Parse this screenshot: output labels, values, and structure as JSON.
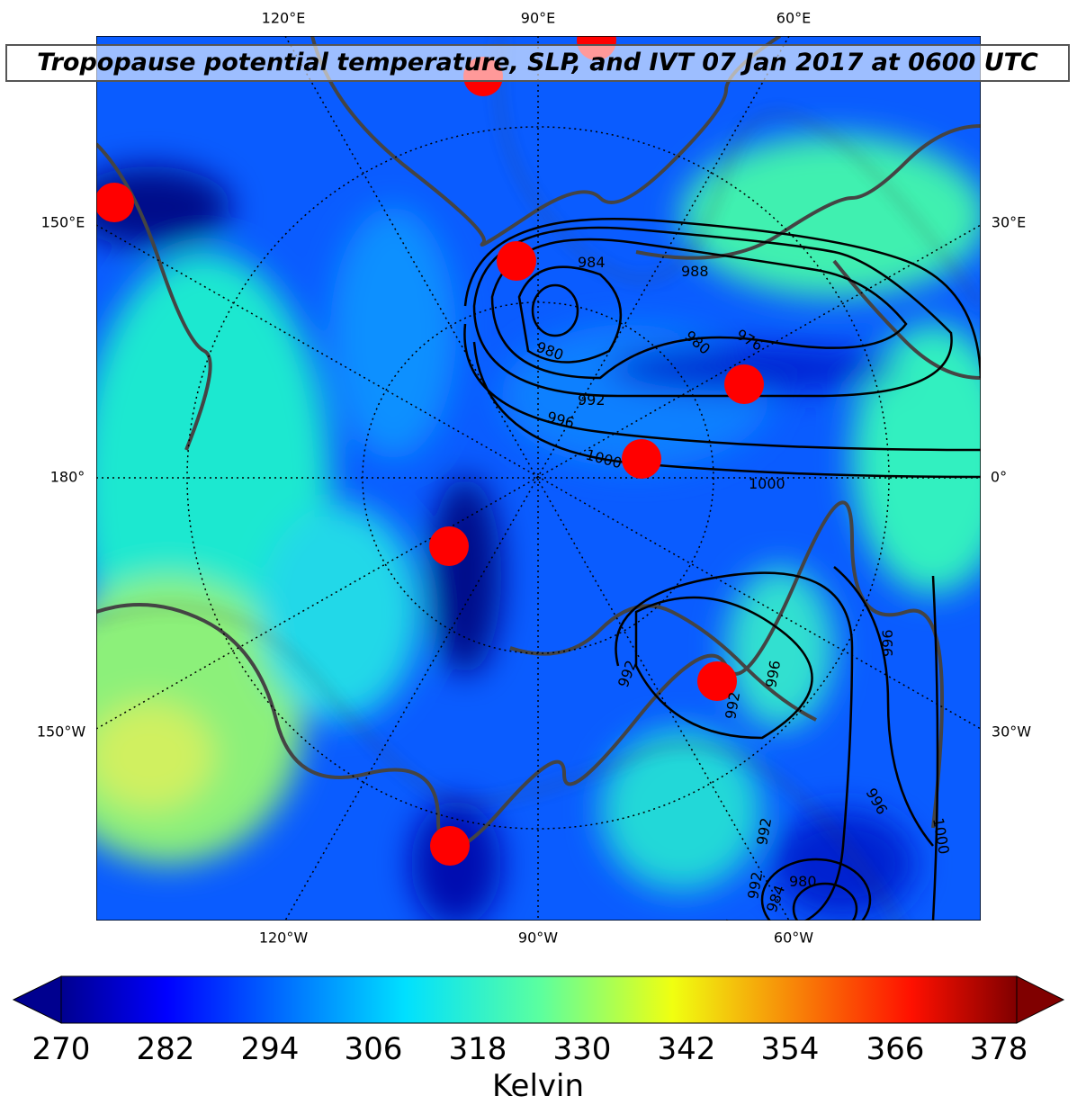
{
  "title": "Tropopause potential temperature, SLP, and IVT 07 Jan 2017 at 0600 UTC",
  "map": {
    "projection": "north polar stereographic",
    "lon_labels_top": [
      "120°E",
      "90°E",
      "60°E"
    ],
    "lon_labels_bottom": [
      "120°W",
      "90°W",
      "60°W"
    ],
    "lat_lon_labels_left": [
      "150°E",
      "180°",
      "150°W"
    ],
    "lat_lon_labels_right": [
      "30°E",
      "0°",
      "30°W"
    ],
    "slp_contour_labels": [
      "984",
      "988",
      "980",
      "980",
      "976",
      "992",
      "996",
      "1000",
      "1000",
      "992",
      "992",
      "992",
      "996",
      "996",
      "996",
      "992",
      "1000",
      "984",
      "980"
    ],
    "colors": {
      "coastline": "#444444",
      "slp_contour": "#000000",
      "ivt": "#ff0000",
      "markers": "#cc00cc"
    }
  },
  "colorbar": {
    "colormap": "jet",
    "ticks": [
      "270",
      "282",
      "294",
      "306",
      "318",
      "330",
      "342",
      "354",
      "366",
      "378"
    ],
    "label": "Kelvin",
    "extend": "both"
  }
}
